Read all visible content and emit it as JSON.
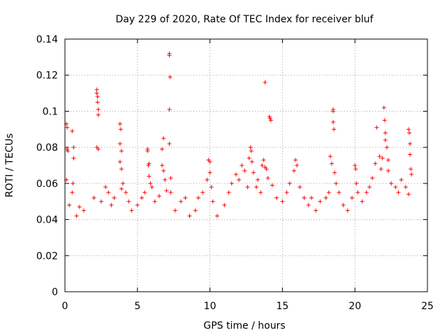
{
  "chart_data": {
    "type": "scatter",
    "title": "Day 229 of 2020, Rate Of TEC Index for receiver bluf",
    "xlabel": "GPS time / hours",
    "ylabel": "ROTI / TECUs",
    "xlim": [
      0,
      25
    ],
    "ylim": [
      0,
      0.14
    ],
    "xticks": [
      0,
      5,
      10,
      15,
      20,
      25
    ],
    "xtick_labels": [
      "0",
      "5",
      "10",
      "15",
      "20",
      "25"
    ],
    "yticks": [
      0,
      0.02,
      0.04,
      0.06,
      0.08,
      0.1,
      0.12,
      0.14
    ],
    "ytick_labels": [
      "0",
      "0.02",
      "0.04",
      "0.06",
      "0.08",
      "0.1",
      "0.12",
      "0.14"
    ],
    "grid": true,
    "marker": "+",
    "color": "#ff0000",
    "series": [
      {
        "name": "ROTI",
        "points": [
          [
            0.1,
            0.062
          ],
          [
            0.1,
            0.093
          ],
          [
            0.15,
            0.091
          ],
          [
            0.15,
            0.079
          ],
          [
            0.2,
            0.078
          ],
          [
            0.5,
            0.055
          ],
          [
            0.5,
            0.089
          ],
          [
            0.6,
            0.074
          ],
          [
            0.6,
            0.08
          ],
          [
            0.55,
            0.06
          ],
          [
            0.3,
            0.048
          ],
          [
            0.8,
            0.042
          ],
          [
            1.0,
            0.047
          ],
          [
            1.3,
            0.045
          ],
          [
            2.2,
            0.112
          ],
          [
            2.2,
            0.11
          ],
          [
            2.25,
            0.108
          ],
          [
            2.25,
            0.105
          ],
          [
            2.3,
            0.101
          ],
          [
            2.3,
            0.098
          ],
          [
            2.2,
            0.08
          ],
          [
            2.3,
            0.079
          ],
          [
            2.0,
            0.052
          ],
          [
            2.5,
            0.05
          ],
          [
            2.8,
            0.058
          ],
          [
            3.0,
            0.055
          ],
          [
            3.2,
            0.048
          ],
          [
            3.4,
            0.052
          ],
          [
            3.8,
            0.093
          ],
          [
            3.85,
            0.09
          ],
          [
            3.8,
            0.082
          ],
          [
            3.9,
            0.078
          ],
          [
            3.8,
            0.072
          ],
          [
            3.9,
            0.068
          ],
          [
            4.0,
            0.06
          ],
          [
            3.9,
            0.057
          ],
          [
            4.2,
            0.055
          ],
          [
            4.4,
            0.05
          ],
          [
            4.6,
            0.045
          ],
          [
            5.0,
            0.048
          ],
          [
            5.3,
            0.052
          ],
          [
            5.5,
            0.055
          ],
          [
            5.7,
            0.079
          ],
          [
            5.7,
            0.078
          ],
          [
            5.8,
            0.071
          ],
          [
            5.75,
            0.07
          ],
          [
            5.8,
            0.064
          ],
          [
            5.9,
            0.06
          ],
          [
            6.0,
            0.058
          ],
          [
            6.2,
            0.05
          ],
          [
            6.5,
            0.053
          ],
          [
            6.7,
            0.079
          ],
          [
            6.8,
            0.085
          ],
          [
            6.7,
            0.07
          ],
          [
            6.8,
            0.067
          ],
          [
            6.9,
            0.062
          ],
          [
            7.0,
            0.056
          ],
          [
            7.2,
            0.132
          ],
          [
            7.2,
            0.131
          ],
          [
            7.25,
            0.119
          ],
          [
            7.2,
            0.101
          ],
          [
            7.2,
            0.082
          ],
          [
            7.3,
            0.063
          ],
          [
            7.3,
            0.055
          ],
          [
            7.6,
            0.045
          ],
          [
            8.0,
            0.05
          ],
          [
            8.3,
            0.052
          ],
          [
            8.6,
            0.042
          ],
          [
            9.0,
            0.045
          ],
          [
            9.2,
            0.052
          ],
          [
            9.5,
            0.055
          ],
          [
            9.8,
            0.062
          ],
          [
            9.9,
            0.073
          ],
          [
            10.0,
            0.072
          ],
          [
            10.0,
            0.066
          ],
          [
            10.1,
            0.058
          ],
          [
            10.2,
            0.05
          ],
          [
            10.5,
            0.042
          ],
          [
            11.0,
            0.048
          ],
          [
            11.3,
            0.055
          ],
          [
            11.5,
            0.06
          ],
          [
            11.8,
            0.065
          ],
          [
            12.0,
            0.062
          ],
          [
            12.2,
            0.07
          ],
          [
            12.4,
            0.067
          ],
          [
            12.6,
            0.058
          ],
          [
            12.7,
            0.074
          ],
          [
            12.8,
            0.08
          ],
          [
            12.85,
            0.078
          ],
          [
            12.9,
            0.072
          ],
          [
            13.0,
            0.066
          ],
          [
            13.2,
            0.058
          ],
          [
            13.3,
            0.062
          ],
          [
            13.5,
            0.055
          ],
          [
            13.6,
            0.07
          ],
          [
            13.7,
            0.073
          ],
          [
            13.8,
            0.069
          ],
          [
            13.8,
            0.116
          ],
          [
            13.9,
            0.068
          ],
          [
            14.0,
            0.063
          ],
          [
            14.1,
            0.097
          ],
          [
            14.15,
            0.096
          ],
          [
            14.2,
            0.095
          ],
          [
            14.3,
            0.059
          ],
          [
            14.6,
            0.052
          ],
          [
            15.0,
            0.05
          ],
          [
            15.3,
            0.055
          ],
          [
            15.5,
            0.06
          ],
          [
            15.8,
            0.067
          ],
          [
            15.9,
            0.073
          ],
          [
            16.0,
            0.07
          ],
          [
            16.2,
            0.058
          ],
          [
            16.5,
            0.052
          ],
          [
            16.8,
            0.048
          ],
          [
            17.0,
            0.052
          ],
          [
            17.3,
            0.045
          ],
          [
            17.6,
            0.05
          ],
          [
            18.0,
            0.052
          ],
          [
            18.2,
            0.055
          ],
          [
            18.3,
            0.075
          ],
          [
            18.4,
            0.071
          ],
          [
            18.5,
            0.101
          ],
          [
            18.5,
            0.1
          ],
          [
            18.5,
            0.094
          ],
          [
            18.55,
            0.09
          ],
          [
            18.6,
            0.066
          ],
          [
            18.7,
            0.06
          ],
          [
            18.9,
            0.055
          ],
          [
            19.2,
            0.048
          ],
          [
            19.5,
            0.045
          ],
          [
            19.8,
            0.052
          ],
          [
            20.0,
            0.07
          ],
          [
            20.05,
            0.068
          ],
          [
            20.1,
            0.06
          ],
          [
            20.2,
            0.055
          ],
          [
            20.5,
            0.05
          ],
          [
            20.8,
            0.055
          ],
          [
            21.0,
            0.058
          ],
          [
            21.2,
            0.063
          ],
          [
            21.4,
            0.071
          ],
          [
            21.5,
            0.091
          ],
          [
            21.7,
            0.075
          ],
          [
            21.8,
            0.068
          ],
          [
            21.9,
            0.074
          ],
          [
            22.0,
            0.102
          ],
          [
            22.05,
            0.095
          ],
          [
            22.1,
            0.088
          ],
          [
            22.1,
            0.084
          ],
          [
            22.2,
            0.08
          ],
          [
            22.3,
            0.073
          ],
          [
            22.3,
            0.067
          ],
          [
            22.5,
            0.06
          ],
          [
            22.8,
            0.058
          ],
          [
            23.0,
            0.055
          ],
          [
            23.2,
            0.062
          ],
          [
            23.5,
            0.058
          ],
          [
            23.7,
            0.09
          ],
          [
            23.75,
            0.088
          ],
          [
            23.8,
            0.082
          ],
          [
            23.8,
            0.076
          ],
          [
            23.85,
            0.068
          ],
          [
            23.9,
            0.065
          ],
          [
            23.7,
            0.054
          ]
        ]
      }
    ]
  }
}
